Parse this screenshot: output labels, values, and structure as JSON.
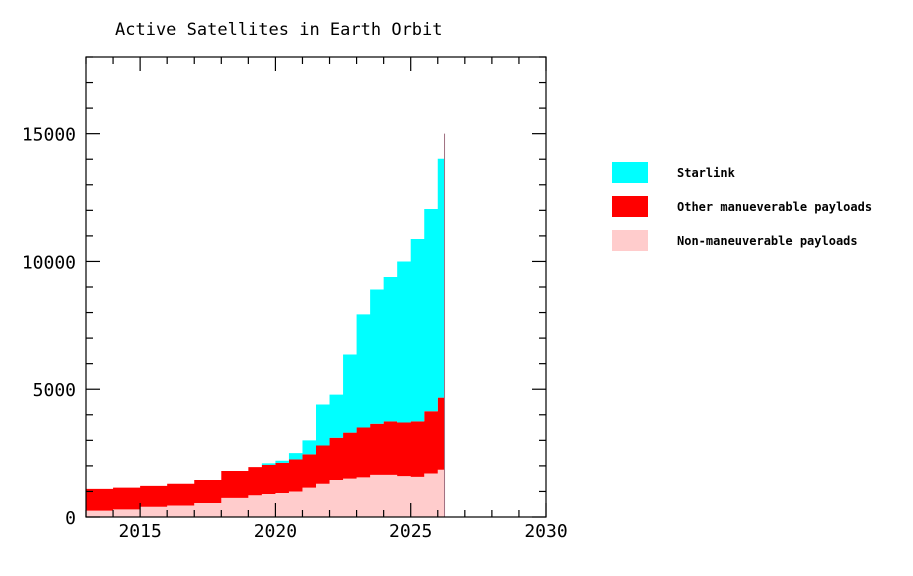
{
  "chart_data": {
    "type": "area",
    "stacked": true,
    "title": "Active Satellites in Earth Orbit",
    "xlabel": "",
    "ylabel": "",
    "xlim": [
      2013,
      2030
    ],
    "ylim": [
      0,
      18000
    ],
    "xticks": [
      2015,
      2020,
      2025,
      2030
    ],
    "yticks": [
      0,
      5000,
      10000,
      15000
    ],
    "grid": false,
    "legend_position": "right",
    "x": [
      2013,
      2014,
      2015,
      2016,
      2017,
      2018,
      2019,
      2019.5,
      2020,
      2020.5,
      2021,
      2021.5,
      2022,
      2022.5,
      2023,
      2023.5,
      2024,
      2024.5,
      2025,
      2025.5,
      2026,
      2026.25
    ],
    "series": [
      {
        "name": "Non-maneuverable payloads",
        "color": "#ffcccc",
        "values": [
          250,
          300,
          400,
          450,
          550,
          750,
          850,
          900,
          940,
          1000,
          1150,
          1300,
          1450,
          1500,
          1550,
          1650,
          1650,
          1600,
          1570,
          1700,
          1850,
          1950
        ]
      },
      {
        "name": "Other manueverable payloads",
        "color": "#ff0000",
        "values": [
          850,
          850,
          820,
          850,
          900,
          1050,
          1100,
          1140,
          1180,
          1250,
          1300,
          1500,
          1650,
          1800,
          1950,
          2000,
          2090,
          2100,
          2170,
          2440,
          2820,
          3040
        ]
      },
      {
        "name": "Starlink",
        "color": "#00ffff",
        "values": [
          0,
          0,
          0,
          0,
          0,
          0,
          0,
          60,
          80,
          250,
          550,
          1600,
          1690,
          3060,
          4430,
          5250,
          5650,
          6300,
          7140,
          7910,
          9350,
          10010
        ]
      }
    ],
    "legend_order": [
      "Starlink",
      "Other manueverable payloads",
      "Non-maneuverable payloads"
    ]
  }
}
